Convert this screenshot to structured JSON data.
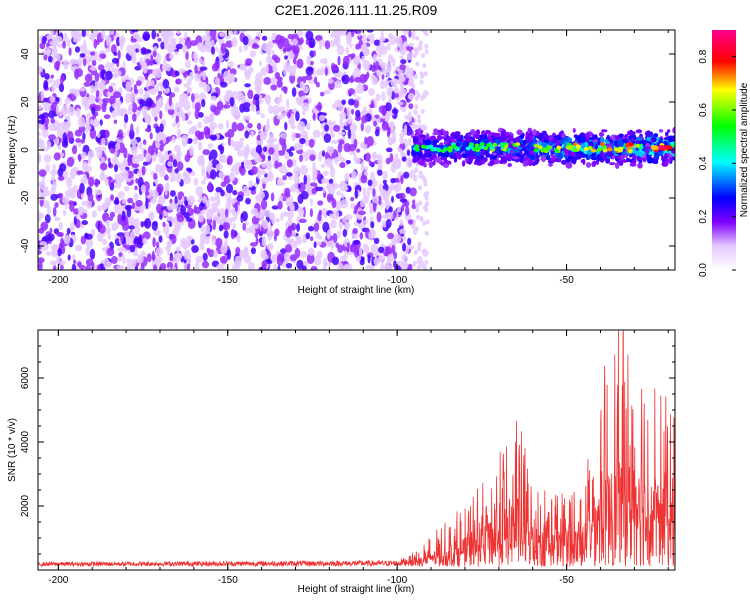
{
  "title": "C2E1.2026.111.11.25.R09",
  "chart_data": [
    {
      "type": "heatmap",
      "xlabel": "Height of straight line (km)",
      "ylabel": "Frequency (Hz)",
      "xlim": [
        -206,
        -18
      ],
      "ylim": [
        -50,
        50
      ],
      "xticks": [
        -200,
        -150,
        -100,
        -50
      ],
      "yticks": [
        -40,
        -20,
        0,
        20,
        40
      ],
      "colorbar": {
        "label": "Normalized spectral amplitude",
        "range": [
          0.0,
          0.9
        ],
        "ticks": [
          0.0,
          0.2,
          0.4,
          0.6,
          0.8
        ],
        "tick_labels": [
          "0.0",
          "0.2",
          "0.4",
          "0.6",
          "0.8"
        ]
      },
      "noise_region": {
        "x_range": [
          -206,
          -95
        ],
        "freq_range": [
          -50,
          50
        ],
        "amplitude": 0.1
      },
      "signal_band": {
        "x_range": [
          -95,
          -18
        ],
        "center_freq": 1,
        "half_width": 6,
        "amplitude_range": [
          0.15,
          0.9
        ]
      }
    },
    {
      "type": "line",
      "xlabel": "Height of straight line (km)",
      "ylabel": "SNR (10 * v/v)",
      "xlim": [
        -206,
        -18
      ],
      "ylim": [
        0,
        7500
      ],
      "xticks": [
        -200,
        -150,
        -100,
        -50
      ],
      "yticks": [
        2000,
        4000,
        6000
      ],
      "color": "#ee3333",
      "envelope": [
        {
          "x": -206,
          "y": 250
        },
        {
          "x": -100,
          "y": 300
        },
        {
          "x": -95,
          "y": 500
        },
        {
          "x": -90,
          "y": 1000
        },
        {
          "x": -80,
          "y": 2000
        },
        {
          "x": -70,
          "y": 3500
        },
        {
          "x": -65,
          "y": 5200
        },
        {
          "x": -60,
          "y": 2600
        },
        {
          "x": -50,
          "y": 2500
        },
        {
          "x": -45,
          "y": 3000
        },
        {
          "x": -40,
          "y": 6000
        },
        {
          "x": -35,
          "y": 7500
        },
        {
          "x": -30,
          "y": 7500
        },
        {
          "x": -25,
          "y": 6000
        },
        {
          "x": -18,
          "y": 5000
        }
      ]
    }
  ]
}
